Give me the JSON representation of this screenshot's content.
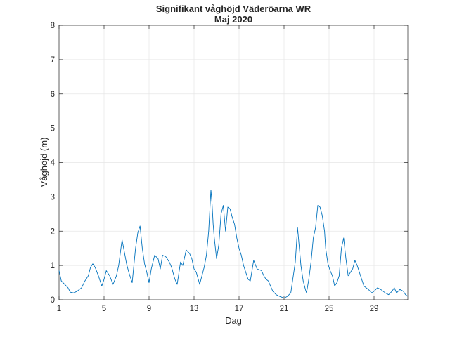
{
  "chart_data": {
    "type": "line",
    "title": "Signifikant våghöjd Väderöarna WR",
    "subtitle": "Maj 2020",
    "xlabel": "Dag",
    "ylabel": "Våghöjd (m)",
    "xlim": [
      1,
      32
    ],
    "ylim": [
      0,
      8
    ],
    "grid": true,
    "x_ticks": [
      1,
      5,
      9,
      13,
      17,
      21,
      25,
      29
    ],
    "y_ticks": [
      0,
      1,
      2,
      3,
      4,
      5,
      6,
      7,
      8
    ],
    "colors": {
      "line": "#0072bd",
      "grid": "#e6e6e6",
      "axis": "#262626"
    },
    "series": [
      {
        "name": "Signifikant våghöjd",
        "x": [
          1.0,
          1.2,
          1.5,
          1.8,
          2.0,
          2.3,
          2.6,
          3.0,
          3.3,
          3.6,
          3.8,
          4.0,
          4.2,
          4.5,
          4.8,
          5.0,
          5.2,
          5.5,
          5.8,
          6.1,
          6.3,
          6.6,
          6.8,
          7.0,
          7.2,
          7.5,
          7.8,
          8.0,
          8.2,
          8.4,
          8.6,
          8.8,
          9.0,
          9.2,
          9.5,
          9.8,
          10.0,
          10.2,
          10.5,
          10.8,
          11.0,
          11.3,
          11.5,
          11.8,
          12.0,
          12.3,
          12.6,
          12.8,
          13.0,
          13.2,
          13.5,
          13.7,
          13.9,
          14.1,
          14.3,
          14.5,
          14.6,
          14.7,
          14.8,
          14.9,
          15.0,
          15.2,
          15.4,
          15.6,
          15.8,
          16.0,
          16.2,
          16.4,
          16.6,
          16.8,
          17.0,
          17.2,
          17.4,
          17.6,
          17.8,
          18.0,
          18.3,
          18.6,
          19.0,
          19.2,
          19.4,
          19.6,
          19.8,
          20.0,
          20.3,
          20.6,
          21.0,
          21.3,
          21.6,
          22.0,
          22.2,
          22.5,
          22.7,
          22.9,
          23.0,
          23.2,
          23.4,
          23.6,
          23.8,
          24.0,
          24.2,
          24.4,
          24.6,
          24.7,
          24.9,
          25.1,
          25.3,
          25.5,
          25.7,
          25.9,
          26.1,
          26.3,
          26.5,
          26.7,
          26.9,
          27.1,
          27.3,
          27.5,
          27.7,
          27.9,
          28.1,
          28.3,
          28.5,
          28.8,
          29.0,
          29.3,
          29.6,
          30.0,
          30.3,
          30.6,
          30.8,
          31.0,
          31.3,
          31.6,
          31.8,
          32.0
        ],
        "y": [
          0.85,
          0.55,
          0.45,
          0.35,
          0.22,
          0.2,
          0.25,
          0.35,
          0.55,
          0.7,
          0.95,
          1.05,
          0.95,
          0.7,
          0.4,
          0.6,
          0.85,
          0.7,
          0.45,
          0.7,
          1.0,
          1.75,
          1.4,
          1.05,
          0.8,
          0.5,
          1.5,
          1.95,
          2.15,
          1.5,
          1.05,
          0.8,
          0.5,
          0.9,
          1.3,
          1.2,
          0.9,
          1.3,
          1.25,
          1.1,
          0.95,
          0.6,
          0.45,
          1.1,
          1.0,
          1.45,
          1.35,
          1.2,
          0.9,
          0.8,
          0.45,
          0.7,
          0.95,
          1.3,
          2.0,
          3.2,
          2.8,
          2.2,
          1.8,
          1.5,
          1.2,
          1.6,
          2.5,
          2.75,
          2.0,
          2.7,
          2.65,
          2.4,
          2.2,
          1.8,
          1.5,
          1.3,
          1.0,
          0.8,
          0.6,
          0.55,
          1.15,
          0.9,
          0.85,
          0.7,
          0.6,
          0.55,
          0.4,
          0.25,
          0.15,
          0.1,
          0.05,
          0.1,
          0.2,
          1.1,
          2.1,
          1.0,
          0.55,
          0.3,
          0.2,
          0.6,
          1.1,
          1.8,
          2.1,
          2.75,
          2.7,
          2.45,
          2.0,
          1.5,
          1.05,
          0.85,
          0.7,
          0.4,
          0.5,
          0.7,
          1.5,
          1.8,
          1.2,
          0.7,
          0.8,
          0.9,
          1.15,
          1.0,
          0.8,
          0.6,
          0.4,
          0.35,
          0.3,
          0.2,
          0.25,
          0.35,
          0.3,
          0.2,
          0.15,
          0.25,
          0.35,
          0.2,
          0.3,
          0.25,
          0.15,
          0.1
        ]
      }
    ]
  }
}
